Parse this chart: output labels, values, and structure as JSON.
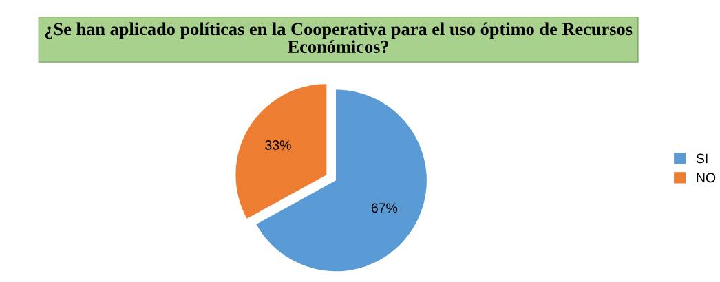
{
  "chart_data": {
    "type": "pie",
    "title": "¿Se han aplicado políticas en la Cooperativa para el uso óptimo de Recursos Económicos?",
    "categories": [
      "SI",
      "NO"
    ],
    "values": [
      67,
      33
    ],
    "colors": [
      "#5b9bd5",
      "#ed7d31"
    ],
    "value_labels": [
      "67%",
      "33%"
    ],
    "legend": "right"
  }
}
